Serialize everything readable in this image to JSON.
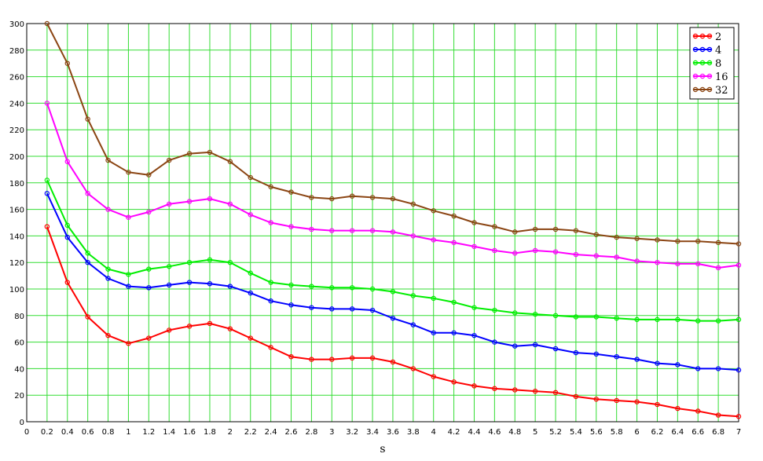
{
  "chart_data": {
    "type": "line",
    "xlabel": "s",
    "ylabel": "",
    "xlim": [
      0,
      7
    ],
    "ylim": [
      0,
      300
    ],
    "x_ticks": [
      "0",
      "0.2",
      "0.4",
      "0.6",
      "0.8",
      "1",
      "1.2",
      "1.4",
      "1.6",
      "1.8",
      "2",
      "2.2",
      "2.4",
      "2.6",
      "2.8",
      "3",
      "3.2",
      "3.4",
      "3.6",
      "3.8",
      "4",
      "4.2",
      "4.4",
      "4.6",
      "4.8",
      "5",
      "5.2",
      "5.4",
      "5.6",
      "5.8",
      "6",
      "6.2",
      "6.4",
      "6.6",
      "6.8",
      "7"
    ],
    "y_ticks": [
      "0",
      "20",
      "40",
      "60",
      "80",
      "100",
      "120",
      "140",
      "160",
      "180",
      "200",
      "220",
      "240",
      "260",
      "280",
      "300"
    ],
    "grid": true,
    "grid_color": "#33dd33",
    "legend_position": "top-right",
    "x": [
      0.2,
      0.4,
      0.6,
      0.8,
      1.0,
      1.2,
      1.4,
      1.6,
      1.8,
      2.0,
      2.2,
      2.4,
      2.6,
      2.8,
      3.0,
      3.2,
      3.4,
      3.6,
      3.8,
      4.0,
      4.2,
      4.4,
      4.6,
      4.8,
      5.0,
      5.2,
      5.4,
      5.6,
      5.8,
      6.0,
      6.2,
      6.4,
      6.6,
      6.8,
      7.0
    ],
    "series": [
      {
        "name": "2",
        "color": "#ff0000",
        "values": [
          147,
          105,
          79,
          65,
          59,
          63,
          69,
          72,
          74,
          70,
          63,
          56,
          49,
          47,
          47,
          48,
          48,
          45,
          40,
          34,
          30,
          27,
          25,
          24,
          23,
          22,
          19,
          17,
          16,
          15,
          13,
          10,
          8,
          5,
          4
        ]
      },
      {
        "name": "4",
        "color": "#0000ff",
        "values": [
          172,
          139,
          120,
          108,
          102,
          101,
          103,
          105,
          104,
          102,
          97,
          91,
          88,
          86,
          85,
          85,
          84,
          78,
          73,
          67,
          67,
          65,
          60,
          57,
          58,
          55,
          52,
          51,
          49,
          47,
          44,
          43,
          40,
          40,
          39
        ]
      },
      {
        "name": "8",
        "color": "#00ee00",
        "values": [
          182,
          148,
          127,
          115,
          111,
          115,
          117,
          120,
          122,
          120,
          112,
          105,
          103,
          102,
          101,
          101,
          100,
          98,
          95,
          93,
          90,
          86,
          84,
          82,
          81,
          80,
          79,
          79,
          78,
          77,
          77,
          77,
          76,
          76,
          77
        ]
      },
      {
        "name": "16",
        "color": "#ff00ff",
        "values": [
          240,
          196,
          172,
          160,
          154,
          158,
          164,
          166,
          168,
          164,
          156,
          150,
          147,
          145,
          144,
          144,
          144,
          143,
          140,
          137,
          135,
          132,
          129,
          127,
          129,
          128,
          126,
          125,
          124,
          121,
          120,
          119,
          119,
          116,
          118
        ]
      },
      {
        "name": "32",
        "color": "#8b4513",
        "values": [
          300,
          270,
          228,
          197,
          188,
          186,
          197,
          202,
          203,
          196,
          184,
          177,
          173,
          169,
          168,
          170,
          169,
          168,
          164,
          159,
          155,
          150,
          147,
          143,
          145,
          145,
          144,
          141,
          139,
          138,
          137,
          136,
          136,
          135,
          134
        ]
      }
    ]
  }
}
